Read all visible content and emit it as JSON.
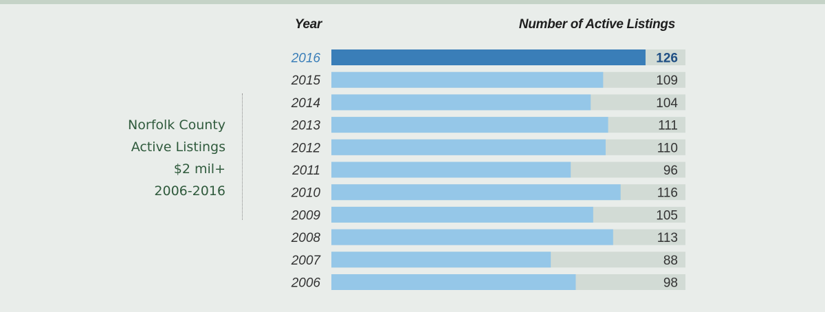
{
  "side_title": {
    "lines": [
      "Norfolk County",
      "Active Listings",
      "$2 mil+",
      "2006-2016"
    ]
  },
  "chart_data": {
    "type": "bar",
    "orientation": "horizontal",
    "column_headers": {
      "category": "Year",
      "value": "Number of Active Listings"
    },
    "categories": [
      "2016",
      "2015",
      "2014",
      "2013",
      "2012",
      "2011",
      "2010",
      "2009",
      "2008",
      "2007",
      "2006"
    ],
    "values": [
      126,
      109,
      104,
      111,
      110,
      96,
      116,
      105,
      113,
      88,
      98
    ],
    "xlim": [
      0,
      142
    ],
    "highlight_category": "2016",
    "grid": false,
    "legend": "none"
  },
  "colors": {
    "bar": "#95c7e8",
    "bar_highlight": "#3a7eb8",
    "track": "#d2dbd5",
    "label": "#333333",
    "label_highlight": "#3a7eb8",
    "value_highlight": "#1f4f84",
    "title": "#2f5a3c"
  }
}
